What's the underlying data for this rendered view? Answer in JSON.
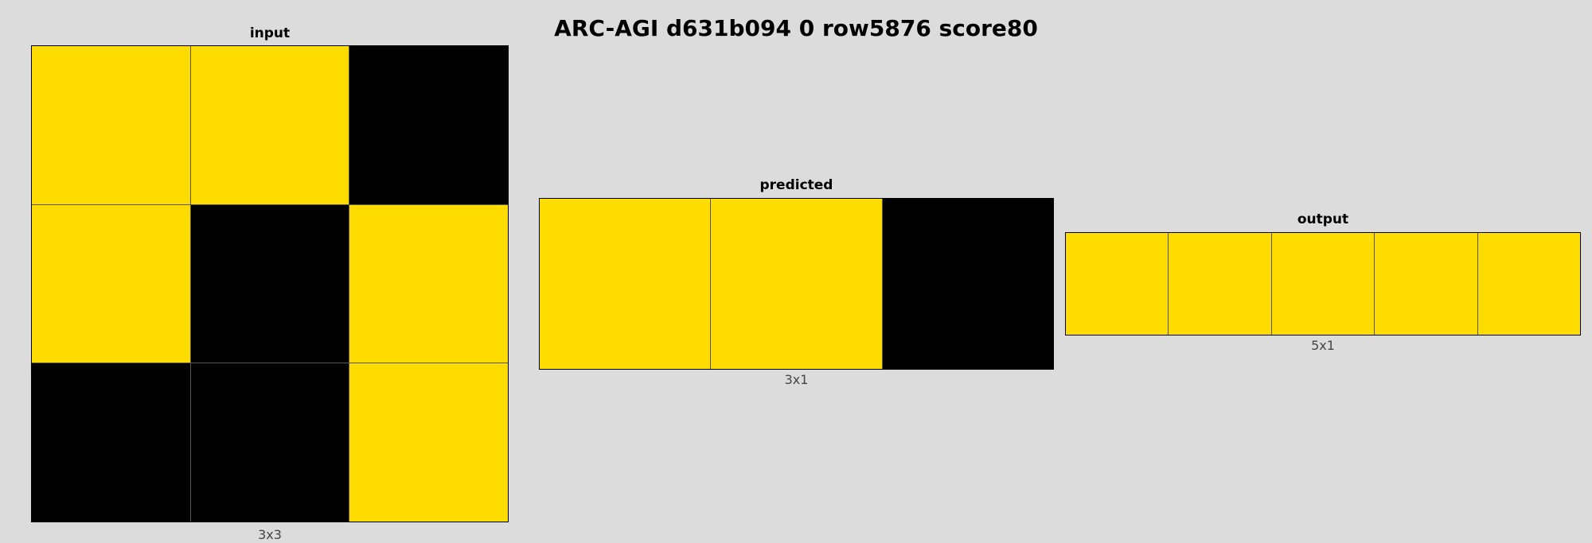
{
  "title": "ARC-AGI d631b094 0 row5876 score80",
  "palette": {
    "0": "#000000",
    "4": "#FFDC00"
  },
  "panels": [
    {
      "id": "input",
      "title": "input",
      "dims": "3x3",
      "rows": 3,
      "cols": 3,
      "grid": [
        [
          4,
          4,
          0
        ],
        [
          4,
          0,
          4
        ],
        [
          0,
          0,
          4
        ]
      ]
    },
    {
      "id": "predicted",
      "title": "predicted",
      "dims": "3x1",
      "rows": 1,
      "cols": 3,
      "grid": [
        [
          4,
          4,
          0
        ]
      ]
    },
    {
      "id": "output",
      "title": "output",
      "dims": "5x1",
      "rows": 1,
      "cols": 5,
      "grid": [
        [
          4,
          4,
          4,
          4,
          4
        ]
      ]
    }
  ]
}
